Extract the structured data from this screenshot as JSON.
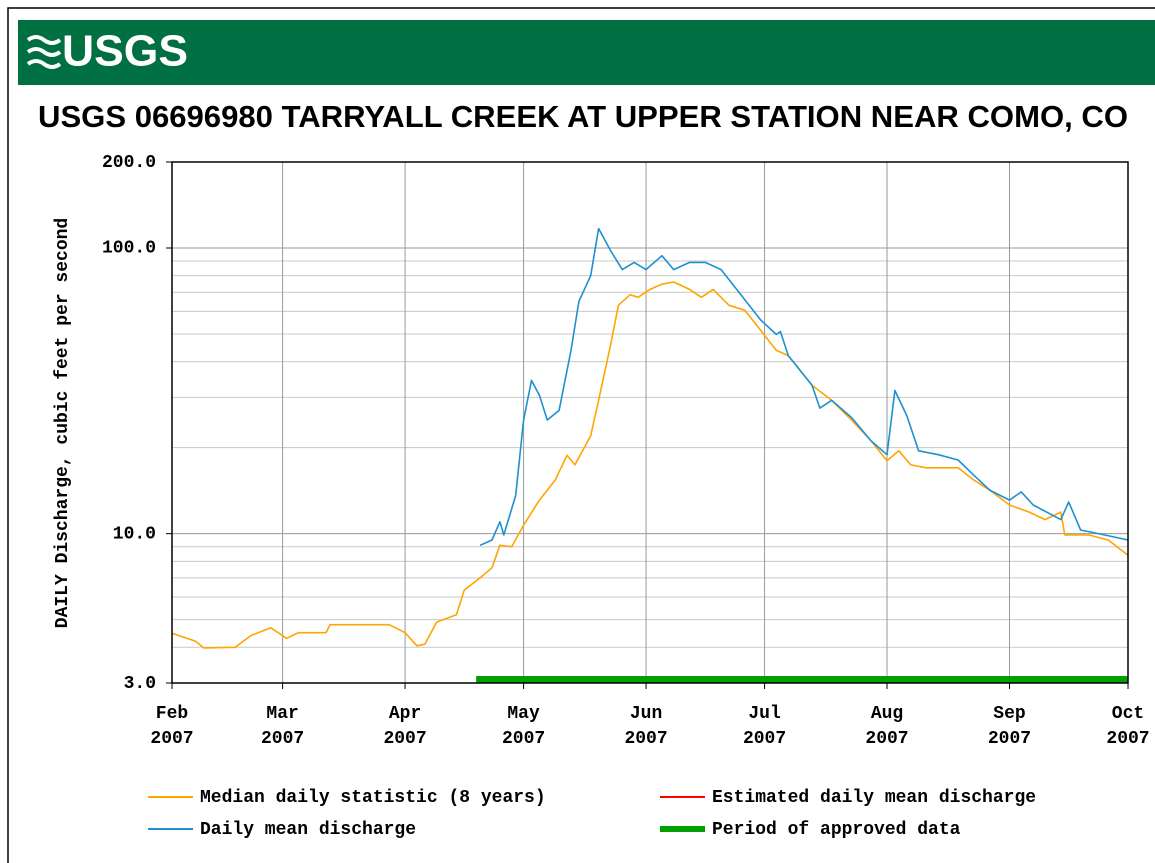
{
  "header": {
    "logo": "USGS"
  },
  "chart_data": {
    "type": "line",
    "title": "USGS 06696980 TARRYALL CREEK AT UPPER STATION NEAR COMO, CO",
    "y_label": "DAILY Discharge, cubic feet per second",
    "log_y": true,
    "grid": true,
    "ylim": [
      3,
      200
    ],
    "yticks": [
      {
        "value": 3,
        "label": "3.0"
      },
      {
        "value": 10,
        "label": "10.0"
      },
      {
        "value": 100,
        "label": "100.0"
      },
      {
        "value": 200,
        "label": "200.0"
      }
    ],
    "y_minor_grid": [
      4,
      5,
      6,
      7,
      8,
      9,
      20,
      30,
      40,
      50,
      60,
      70,
      80,
      90
    ],
    "xlim": [
      0,
      242
    ],
    "xticks": [
      {
        "value": 0,
        "label": "Feb 2007"
      },
      {
        "value": 28,
        "label": "Mar 2007"
      },
      {
        "value": 59,
        "label": "Apr 2007"
      },
      {
        "value": 89,
        "label": "May 2007"
      },
      {
        "value": 120,
        "label": "Jun 2007"
      },
      {
        "value": 150,
        "label": "Jul 2007"
      },
      {
        "value": 181,
        "label": "Aug 2007"
      },
      {
        "value": 212,
        "label": "Sep 2007"
      },
      {
        "value": 242,
        "label": "Oct 2007"
      }
    ],
    "series": [
      {
        "name": "Median daily statistic (8 years)",
        "color": "#ffa500",
        "x": [
          0,
          6,
          8,
          16,
          20,
          25,
          29,
          32,
          39,
          40,
          45,
          55,
          59,
          62,
          64,
          67,
          72,
          74,
          78,
          81,
          83,
          86,
          89,
          93,
          97,
          100,
          102,
          106,
          108,
          111,
          113,
          116,
          118,
          121,
          124,
          127,
          131,
          134,
          137,
          141,
          145,
          149,
          153,
          156,
          162,
          167,
          172,
          177,
          181,
          184,
          187,
          191,
          199,
          203,
          207,
          212,
          217,
          221,
          225,
          226,
          232,
          237,
          242
        ],
        "values": [
          4.48,
          4.2,
          3.98,
          4.0,
          4.4,
          4.68,
          4.3,
          4.5,
          4.5,
          4.8,
          4.8,
          4.8,
          4.5,
          4.05,
          4.1,
          4.9,
          5.2,
          6.35,
          7.0,
          7.6,
          9.1,
          9.0,
          10.7,
          13.1,
          15.4,
          18.8,
          17.4,
          22.0,
          29.3,
          45.6,
          63,
          68.6,
          67.2,
          71.6,
          74.7,
          76,
          71.6,
          67.2,
          71.6,
          63,
          60.5,
          51.5,
          43.8,
          42,
          33.1,
          29.3,
          25,
          21.1,
          18,
          19.5,
          17.4,
          17,
          17,
          15.4,
          14.2,
          12.6,
          11.9,
          11.2,
          11.9,
          9.9,
          9.9,
          9.5,
          8.4
        ]
      },
      {
        "name": "Estimated daily mean discharge",
        "color": "#ff0000",
        "x": [],
        "values": []
      },
      {
        "name": "Daily mean discharge",
        "color": "#1e90d2",
        "x": [
          78,
          81,
          83,
          84,
          87,
          89,
          91,
          93,
          95,
          98,
          101,
          103,
          106,
          108,
          111,
          114,
          117,
          120,
          124,
          127,
          131,
          135,
          139,
          144,
          149,
          153,
          154,
          156,
          162,
          164,
          167,
          172,
          177,
          181,
          183,
          186,
          189,
          194,
          199,
          203,
          207,
          212,
          215,
          218,
          225,
          227,
          230,
          236,
          242
        ],
        "values": [
          9.1,
          9.5,
          11,
          9.9,
          13.6,
          25,
          34.4,
          30.5,
          25,
          27,
          43.8,
          65,
          80,
          117,
          98,
          84,
          89,
          84,
          94,
          84,
          89,
          89,
          84,
          68.6,
          56,
          49.8,
          51,
          42,
          33.1,
          27.5,
          29.3,
          25.5,
          21.1,
          18.9,
          31.7,
          25.9,
          19.5,
          18.9,
          18.1,
          16,
          14.2,
          13.1,
          14,
          12.6,
          11.2,
          12.9,
          10.3,
          9.9,
          9.5
        ]
      }
    ],
    "approved_period": {
      "name": "Period of approved data",
      "color": "#00a000",
      "range": [
        77,
        242
      ]
    }
  }
}
